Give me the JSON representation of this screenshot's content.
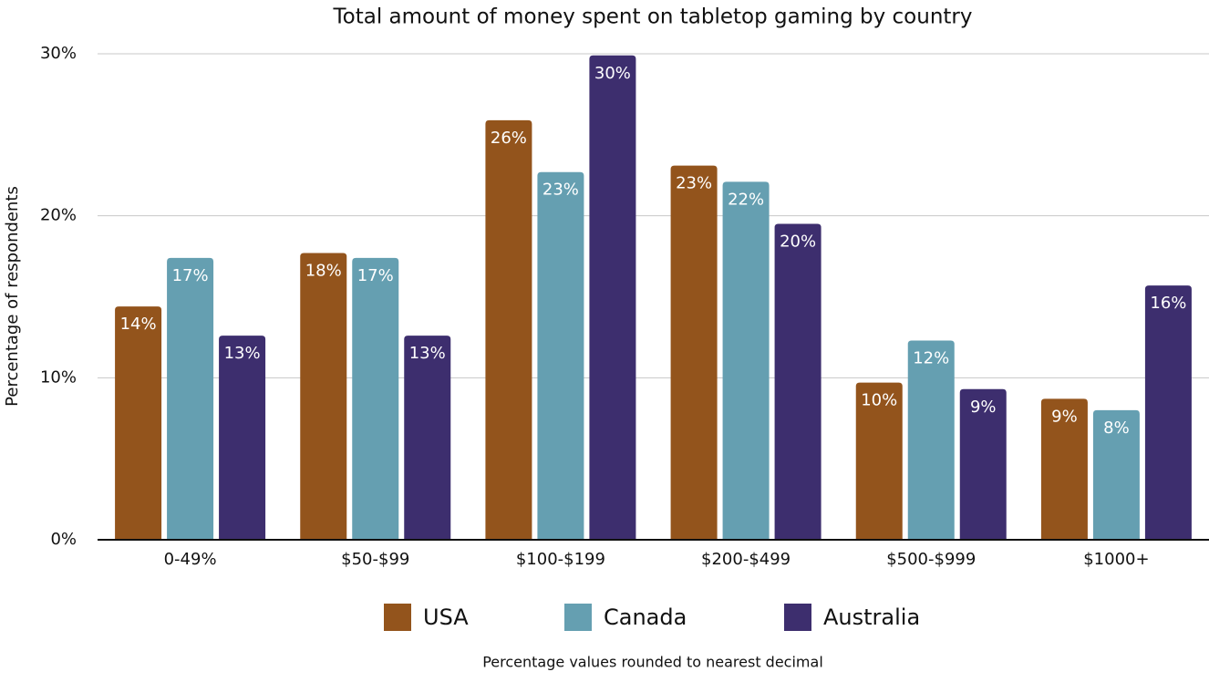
{
  "chart_data": {
    "type": "bar",
    "title": "Total amount of money spent on tabletop gaming by country",
    "y_label": "Percentage of respondents",
    "note": "Percentage values rounded to nearest decimal",
    "categories": [
      "0-49%",
      "$50-$99",
      "$100-$199",
      "$200-$499",
      "$500-$999",
      "$1000+"
    ],
    "series": [
      {
        "name": "USA",
        "color": "#93541c",
        "values": [
          14.4,
          17.7,
          25.9,
          23.1,
          9.7,
          8.7
        ],
        "value_labels": [
          "14%",
          "18%",
          "26%",
          "23%",
          "10%",
          "9%"
        ]
      },
      {
        "name": "Canada",
        "color": "#659fb1",
        "values": [
          17.4,
          17.4,
          22.7,
          22.1,
          12.3,
          8.0
        ],
        "value_labels": [
          "17%",
          "17%",
          "23%",
          "22%",
          "12%",
          "8%"
        ]
      },
      {
        "name": "Australia",
        "color": "#3d2e6e",
        "values": [
          12.6,
          12.6,
          29.9,
          19.5,
          9.3,
          15.7
        ],
        "value_labels": [
          "13%",
          "13%",
          "30%",
          "20%",
          "9%",
          "16%"
        ]
      }
    ],
    "ylim": [
      0,
      30
    ],
    "yticks": [
      {
        "value": 0,
        "label": "0%"
      },
      {
        "value": 10,
        "label": "10%"
      },
      {
        "value": 20,
        "label": "20%"
      },
      {
        "value": 30,
        "label": "30%"
      }
    ],
    "grid": true,
    "legend": "bottom"
  }
}
